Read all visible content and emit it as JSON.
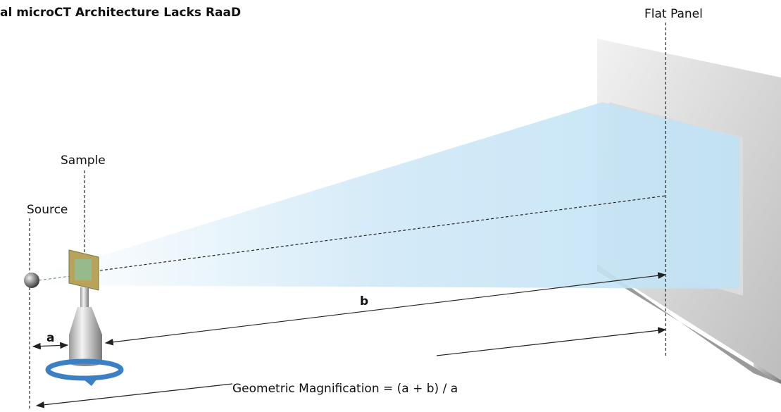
{
  "title": "al microCT Architecture Lacks RaaD",
  "labels": {
    "flat_panel": "Flat Panel",
    "sample": "Sample",
    "source": "Source",
    "a": "a",
    "b": "b",
    "formula": "Geometric Magnification = (a + b) / a"
  }
}
